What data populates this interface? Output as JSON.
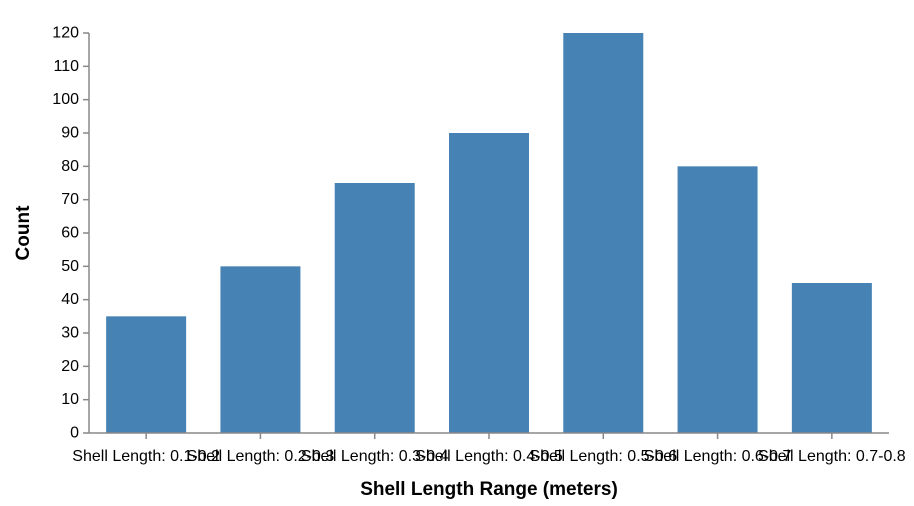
{
  "chart_data": {
    "type": "bar",
    "categories": [
      "Shell Length: 0.1-0.2",
      "Shell Length: 0.2-0.3",
      "Shell Length: 0.3-0.4",
      "Shell Length: 0.4-0.5",
      "Shell Length: 0.5-0.6",
      "Shell Length: 0.6-0.7",
      "Shell Length: 0.7-0.8"
    ],
    "values": [
      35,
      50,
      75,
      90,
      120,
      80,
      45
    ],
    "xlabel": "Shell Length Range (meters)",
    "ylabel": "Count",
    "ylim": [
      0,
      120
    ],
    "yticks": [
      0,
      10,
      20,
      30,
      40,
      50,
      60,
      70,
      80,
      90,
      100,
      110,
      120
    ],
    "grid": false,
    "legend": "none",
    "bar_color": "#4682b4",
    "axis_color": "#888888"
  }
}
